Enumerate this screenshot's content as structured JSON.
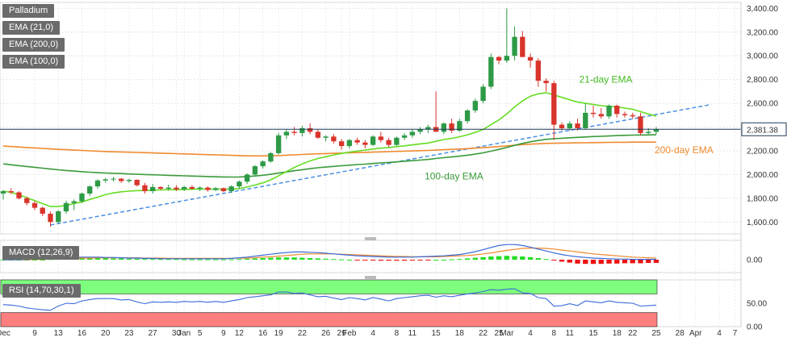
{
  "chart_data": [
    {
      "panel": "price",
      "type": "candlestick",
      "symbol": "Palladium",
      "legend": [
        {
          "label": "Palladium",
          "color": "#6b6b6b"
        },
        {
          "label": "EMA (21,0)",
          "color": "#6b6b6b"
        },
        {
          "label": "EMA (200,0)",
          "color": "#6b6b6b"
        },
        {
          "label": "EMA (100,0)",
          "color": "#6b6b6b"
        }
      ],
      "ylim": [
        1500,
        3450
      ],
      "y_ticks": [
        "1,600.00",
        "1,800.00",
        "2,000.00",
        "2,200.00",
        "2,400.00",
        "2,600.00",
        "2,800.00",
        "3,000.00",
        "3,200.00",
        "3,400.00"
      ],
      "y_tick_values": [
        1600,
        1800,
        2000,
        2200,
        2400,
        2600,
        2800,
        3000,
        3200,
        3400
      ],
      "x_ticks": [
        "Dec",
        "9",
        "13",
        "16",
        "20",
        "23",
        "27",
        "30",
        "Jan",
        "5",
        "9",
        "12",
        "16",
        "19",
        "22",
        "26",
        "29",
        "Feb",
        "4",
        "8",
        "11",
        "15",
        "18",
        "22",
        "25",
        "Mar",
        "4",
        "8",
        "11",
        "15",
        "18",
        "22",
        "25",
        "28",
        "Apr",
        "4",
        "7"
      ],
      "last_price": "2,381.38",
      "last_price_value": 2381.38,
      "candles": [
        {
          "o": 1840,
          "h": 1870,
          "l": 1790,
          "c": 1860
        },
        {
          "o": 1860,
          "h": 1885,
          "l": 1835,
          "c": 1850
        },
        {
          "o": 1850,
          "h": 1860,
          "l": 1790,
          "c": 1800
        },
        {
          "o": 1800,
          "h": 1815,
          "l": 1740,
          "c": 1760
        },
        {
          "o": 1760,
          "h": 1775,
          "l": 1700,
          "c": 1720
        },
        {
          "o": 1720,
          "h": 1730,
          "l": 1650,
          "c": 1670
        },
        {
          "o": 1670,
          "h": 1690,
          "l": 1560,
          "c": 1600
        },
        {
          "o": 1600,
          "h": 1700,
          "l": 1590,
          "c": 1690
        },
        {
          "o": 1690,
          "h": 1780,
          "l": 1670,
          "c": 1760
        },
        {
          "o": 1760,
          "h": 1790,
          "l": 1700,
          "c": 1775
        },
        {
          "o": 1775,
          "h": 1850,
          "l": 1760,
          "c": 1840
        },
        {
          "o": 1840,
          "h": 1910,
          "l": 1820,
          "c": 1900
        },
        {
          "o": 1900,
          "h": 1960,
          "l": 1880,
          "c": 1950
        },
        {
          "o": 1950,
          "h": 1970,
          "l": 1930,
          "c": 1960
        },
        {
          "o": 1960,
          "h": 1980,
          "l": 1940,
          "c": 1965
        },
        {
          "o": 1965,
          "h": 1970,
          "l": 1930,
          "c": 1945
        },
        {
          "o": 1945,
          "h": 1965,
          "l": 1930,
          "c": 1955
        },
        {
          "o": 1955,
          "h": 1960,
          "l": 1900,
          "c": 1910
        },
        {
          "o": 1910,
          "h": 1930,
          "l": 1840,
          "c": 1860
        },
        {
          "o": 1860,
          "h": 1920,
          "l": 1840,
          "c": 1895
        },
        {
          "o": 1895,
          "h": 1900,
          "l": 1870,
          "c": 1880
        },
        {
          "o": 1880,
          "h": 1915,
          "l": 1865,
          "c": 1890
        },
        {
          "o": 1890,
          "h": 1910,
          "l": 1860,
          "c": 1875
        },
        {
          "o": 1875,
          "h": 1905,
          "l": 1860,
          "c": 1895
        },
        {
          "o": 1895,
          "h": 1910,
          "l": 1875,
          "c": 1880
        },
        {
          "o": 1880,
          "h": 1900,
          "l": 1860,
          "c": 1890
        },
        {
          "o": 1890,
          "h": 1900,
          "l": 1855,
          "c": 1870
        },
        {
          "o": 1870,
          "h": 1895,
          "l": 1860,
          "c": 1885
        },
        {
          "o": 1885,
          "h": 1890,
          "l": 1850,
          "c": 1860
        },
        {
          "o": 1860,
          "h": 1910,
          "l": 1845,
          "c": 1900
        },
        {
          "o": 1900,
          "h": 1950,
          "l": 1880,
          "c": 1940
        },
        {
          "o": 1940,
          "h": 2010,
          "l": 1920,
          "c": 2000
        },
        {
          "o": 2000,
          "h": 2080,
          "l": 1990,
          "c": 2070
        },
        {
          "o": 2070,
          "h": 2120,
          "l": 2050,
          "c": 2110
        },
        {
          "o": 2110,
          "h": 2190,
          "l": 2100,
          "c": 2180
        },
        {
          "o": 2180,
          "h": 2350,
          "l": 2170,
          "c": 2330
        },
        {
          "o": 2330,
          "h": 2380,
          "l": 2300,
          "c": 2360
        },
        {
          "o": 2360,
          "h": 2400,
          "l": 2330,
          "c": 2350
        },
        {
          "o": 2350,
          "h": 2410,
          "l": 2320,
          "c": 2390
        },
        {
          "o": 2390,
          "h": 2430,
          "l": 2340,
          "c": 2360
        },
        {
          "o": 2360,
          "h": 2380,
          "l": 2300,
          "c": 2310
        },
        {
          "o": 2310,
          "h": 2330,
          "l": 2280,
          "c": 2320
        },
        {
          "o": 2320,
          "h": 2340,
          "l": 2260,
          "c": 2280
        },
        {
          "o": 2280,
          "h": 2300,
          "l": 2210,
          "c": 2240
        },
        {
          "o": 2240,
          "h": 2300,
          "l": 2220,
          "c": 2290
        },
        {
          "o": 2290,
          "h": 2310,
          "l": 2250,
          "c": 2270
        },
        {
          "o": 2270,
          "h": 2290,
          "l": 2220,
          "c": 2250
        },
        {
          "o": 2250,
          "h": 2330,
          "l": 2240,
          "c": 2320
        },
        {
          "o": 2320,
          "h": 2360,
          "l": 2270,
          "c": 2290
        },
        {
          "o": 2290,
          "h": 2310,
          "l": 2230,
          "c": 2250
        },
        {
          "o": 2250,
          "h": 2320,
          "l": 2240,
          "c": 2310
        },
        {
          "o": 2310,
          "h": 2350,
          "l": 2290,
          "c": 2330
        },
        {
          "o": 2330,
          "h": 2380,
          "l": 2310,
          "c": 2360
        },
        {
          "o": 2360,
          "h": 2400,
          "l": 2340,
          "c": 2380
        },
        {
          "o": 2380,
          "h": 2420,
          "l": 2350,
          "c": 2400
        },
        {
          "o": 2400,
          "h": 2700,
          "l": 2370,
          "c": 2360
        },
        {
          "o": 2360,
          "h": 2440,
          "l": 2340,
          "c": 2430
        },
        {
          "o": 2430,
          "h": 2470,
          "l": 2350,
          "c": 2370
        },
        {
          "o": 2370,
          "h": 2470,
          "l": 2360,
          "c": 2450
        },
        {
          "o": 2450,
          "h": 2550,
          "l": 2430,
          "c": 2540
        },
        {
          "o": 2540,
          "h": 2640,
          "l": 2520,
          "c": 2620
        },
        {
          "o": 2620,
          "h": 2760,
          "l": 2600,
          "c": 2740
        },
        {
          "o": 2740,
          "h": 3020,
          "l": 2720,
          "c": 2990
        },
        {
          "o": 2990,
          "h": 3000,
          "l": 2930,
          "c": 2960
        },
        {
          "o": 2960,
          "h": 3400,
          "l": 2940,
          "c": 3000
        },
        {
          "o": 3000,
          "h": 3250,
          "l": 2960,
          "c": 3160
        },
        {
          "o": 3160,
          "h": 3210,
          "l": 2990,
          "c": 2990
        },
        {
          "o": 2990,
          "h": 3020,
          "l": 2900,
          "c": 2960
        },
        {
          "o": 2960,
          "h": 2980,
          "l": 2740,
          "c": 2790
        },
        {
          "o": 2790,
          "h": 2810,
          "l": 2700,
          "c": 2770
        },
        {
          "o": 2770,
          "h": 2790,
          "l": 2290,
          "c": 2420
        },
        {
          "o": 2420,
          "h": 2440,
          "l": 2370,
          "c": 2390
        },
        {
          "o": 2390,
          "h": 2450,
          "l": 2370,
          "c": 2430
        },
        {
          "o": 2430,
          "h": 2470,
          "l": 2370,
          "c": 2390
        },
        {
          "o": 2390,
          "h": 2600,
          "l": 2380,
          "c": 2520
        },
        {
          "o": 2520,
          "h": 2580,
          "l": 2480,
          "c": 2510
        },
        {
          "o": 2510,
          "h": 2560,
          "l": 2470,
          "c": 2490
        },
        {
          "o": 2490,
          "h": 2590,
          "l": 2470,
          "c": 2580
        },
        {
          "o": 2580,
          "h": 2590,
          "l": 2480,
          "c": 2510
        },
        {
          "o": 2510,
          "h": 2530,
          "l": 2480,
          "c": 2500
        },
        {
          "o": 2500,
          "h": 2520,
          "l": 2470,
          "c": 2490
        },
        {
          "o": 2490,
          "h": 2520,
          "l": 2330,
          "c": 2350
        },
        {
          "o": 2350,
          "h": 2390,
          "l": 2340,
          "c": 2360
        },
        {
          "o": 2360,
          "h": 2400,
          "l": 2340,
          "c": 2381
        }
      ],
      "ema21": [
        1860,
        1850,
        1830,
        1805,
        1780,
        1755,
        1730,
        1730,
        1740,
        1755,
        1770,
        1790,
        1810,
        1830,
        1845,
        1855,
        1860,
        1865,
        1865,
        1868,
        1870,
        1872,
        1872,
        1875,
        1876,
        1877,
        1877,
        1878,
        1876,
        1878,
        1882,
        1895,
        1912,
        1930,
        1955,
        1990,
        2025,
        2060,
        2090,
        2115,
        2135,
        2150,
        2165,
        2178,
        2188,
        2198,
        2206,
        2215,
        2222,
        2228,
        2235,
        2242,
        2250,
        2258,
        2266,
        2280,
        2295,
        2305,
        2318,
        2335,
        2355,
        2380,
        2420,
        2460,
        2510,
        2570,
        2620,
        2660,
        2680,
        2690,
        2670,
        2650,
        2630,
        2610,
        2600,
        2590,
        2580,
        2575,
        2570,
        2560,
        2550,
        2530,
        2510,
        2492
      ],
      "ema100": [
        2090,
        2082,
        2075,
        2068,
        2061,
        2054,
        2046,
        2040,
        2034,
        2029,
        2024,
        2020,
        2016,
        2013,
        2010,
        2008,
        2005,
        2003,
        2000,
        1998,
        1996,
        1993,
        1991,
        1989,
        1987,
        1985,
        1983,
        1981,
        1980,
        1979,
        1980,
        1983,
        1988,
        1994,
        2002,
        2012,
        2022,
        2032,
        2041,
        2050,
        2057,
        2063,
        2069,
        2074,
        2079,
        2084,
        2088,
        2093,
        2098,
        2102,
        2107,
        2112,
        2117,
        2122,
        2127,
        2135,
        2142,
        2148,
        2155,
        2163,
        2172,
        2183,
        2197,
        2212,
        2228,
        2246,
        2262,
        2276,
        2287,
        2297,
        2302,
        2306,
        2310,
        2313,
        2317,
        2320,
        2322,
        2325,
        2328,
        2330,
        2332,
        2333,
        2334,
        2335
      ],
      "ema200": [
        2240,
        2236,
        2232,
        2228,
        2224,
        2220,
        2216,
        2212,
        2209,
        2206,
        2203,
        2200,
        2197,
        2194,
        2192,
        2190,
        2188,
        2186,
        2184,
        2182,
        2180,
        2178,
        2176,
        2174,
        2172,
        2170,
        2168,
        2166,
        2164,
        2162,
        2160,
        2158,
        2157,
        2157,
        2158,
        2160,
        2163,
        2166,
        2169,
        2172,
        2175,
        2177,
        2179,
        2181,
        2183,
        2185,
        2187,
        2189,
        2191,
        2193,
        2195,
        2197,
        2199,
        2201,
        2203,
        2206,
        2209,
        2212,
        2215,
        2218,
        2222,
        2226,
        2231,
        2236,
        2241,
        2247,
        2252,
        2256,
        2259,
        2262,
        2264,
        2265,
        2266,
        2267,
        2268,
        2269,
        2270,
        2271,
        2272,
        2272,
        2273,
        2273,
        2273,
        2273
      ],
      "trendline": {
        "from": {
          "i": 6,
          "v": 1575
        },
        "to": {
          "i": 90,
          "v": 2590
        }
      },
      "annotations": [
        {
          "text": "21-day EMA",
          "color": "#44bb22"
        },
        {
          "text": "200-day EMA",
          "color": "#ef8a2e"
        },
        {
          "text": "100-day EMA",
          "color": "#3a9a3a"
        }
      ],
      "colors": {
        "bull": "#2d9a46",
        "bear": "#d9342b",
        "ema21": "#66dd22",
        "ema100": "#3a9a3a",
        "ema200": "#ef8a2e",
        "trendline": "#4a90e2",
        "last_price_line": "#1f3a5a",
        "last_price_bg": "#ffffff"
      }
    },
    {
      "panel": "macd",
      "type": "histogram+line",
      "label": "MACD (12,26,9)",
      "y_ticks": [
        "0.00"
      ],
      "ylim": [
        -40,
        60
      ],
      "histogram": [
        0,
        0,
        0,
        0,
        0,
        0,
        2,
        3,
        4,
        5,
        5,
        5,
        5,
        5,
        4,
        4,
        3,
        3,
        2,
        2,
        2,
        2,
        2,
        1,
        1,
        1,
        1,
        1,
        1,
        1,
        2,
        3,
        4,
        5,
        6,
        7,
        7,
        7,
        6,
        5,
        4,
        3,
        2,
        1,
        0,
        -1,
        -2,
        -2,
        -3,
        -3,
        -3,
        -3,
        -2,
        -2,
        -1,
        0,
        0,
        1,
        2,
        4,
        6,
        8,
        10,
        11,
        12,
        11,
        10,
        8,
        5,
        2,
        -2,
        -6,
        -9,
        -12,
        -13,
        -13,
        -13,
        -12,
        -12,
        -11,
        -11,
        -11,
        -10,
        -10
      ],
      "macd_line": [
        0,
        0,
        0,
        1,
        2,
        3,
        4,
        5,
        6,
        7,
        8,
        8,
        8,
        7,
        7,
        6,
        5,
        5,
        4,
        4,
        3,
        3,
        3,
        3,
        3,
        3,
        3,
        3,
        3,
        4,
        6,
        8,
        11,
        14,
        17,
        20,
        22,
        24,
        24,
        23,
        22,
        20,
        18,
        16,
        14,
        12,
        11,
        10,
        9,
        8,
        8,
        8,
        8,
        9,
        10,
        11,
        12,
        14,
        16,
        20,
        25,
        31,
        38,
        44,
        47,
        47,
        44,
        39,
        33,
        27,
        21,
        16,
        12,
        9,
        7,
        5,
        4,
        3,
        2,
        2,
        1,
        1,
        1,
        1
      ],
      "signal_line": [
        0,
        0,
        0,
        0,
        1,
        1,
        2,
        3,
        3,
        4,
        5,
        5,
        6,
        6,
        6,
        6,
        6,
        6,
        5,
        5,
        5,
        4,
        4,
        4,
        4,
        4,
        4,
        4,
        4,
        4,
        5,
        5,
        6,
        8,
        9,
        11,
        13,
        15,
        17,
        18,
        18,
        18,
        18,
        17,
        16,
        15,
        14,
        13,
        12,
        11,
        10,
        10,
        9,
        9,
        9,
        9,
        10,
        11,
        12,
        13,
        15,
        18,
        21,
        25,
        29,
        32,
        35,
        36,
        36,
        35,
        33,
        30,
        27,
        24,
        21,
        18,
        16,
        14,
        12,
        10,
        8,
        7,
        6,
        5
      ],
      "colors": {
        "positive": "#22dd22",
        "negative": "#ee1111",
        "macd": "#3a6ad9",
        "signal": "#ef8a2e"
      }
    },
    {
      "panel": "rsi",
      "type": "line",
      "label": "RSI (14,70,30,1)",
      "y_ticks": [
        "50.00",
        "0.00"
      ],
      "ylim": [
        0,
        100
      ],
      "overbought": 70,
      "oversold": 30,
      "values": [
        47,
        46,
        44,
        40,
        38,
        36,
        35,
        44,
        50,
        49,
        55,
        58,
        60,
        60,
        60,
        57,
        58,
        53,
        49,
        53,
        52,
        53,
        52,
        54,
        53,
        54,
        52,
        54,
        52,
        55,
        58,
        62,
        64,
        66,
        68,
        74,
        74,
        71,
        72,
        68,
        64,
        65,
        61,
        58,
        62,
        60,
        57,
        62,
        59,
        55,
        60,
        62,
        64,
        66,
        67,
        63,
        66,
        64,
        67,
        70,
        72,
        75,
        79,
        78,
        80,
        81,
        72,
        71,
        62,
        60,
        44,
        45,
        49,
        45,
        55,
        53,
        51,
        55,
        52,
        51,
        50,
        44,
        45,
        46
      ],
      "colors": {
        "line": "#3a6ad9",
        "overbought_zone": "#7dff7d",
        "oversold_zone": "#ff7f7f"
      }
    }
  ]
}
